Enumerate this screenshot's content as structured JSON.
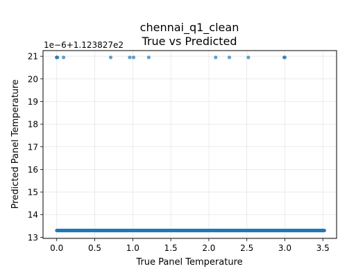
{
  "chart_data": {
    "type": "scatter",
    "title_line1": "chennai_q1_clean",
    "title_line2": "True vs Predicted",
    "xlabel": "True Panel Temperature",
    "ylabel": "Predicted Panel Temperature",
    "offset_label": "1e−6+1.123827e2",
    "xlim": [
      -0.18,
      3.68
    ],
    "ylim": [
      12.95,
      21.25
    ],
    "xticks": [
      0.0,
      0.5,
      1.0,
      1.5,
      2.0,
      2.5,
      3.0,
      3.5
    ],
    "xtick_labels": [
      "0.0",
      "0.5",
      "1.0",
      "1.5",
      "2.0",
      "2.5",
      "3.0",
      "3.5"
    ],
    "yticks": [
      13,
      14,
      15,
      16,
      17,
      18,
      19,
      20,
      21
    ],
    "ytick_labels": [
      "13",
      "14",
      "15",
      "16",
      "17",
      "18",
      "19",
      "20",
      "21"
    ],
    "grid": true,
    "marker_color": "#1f77b4",
    "marker_alpha": 0.7,
    "series": [
      {
        "x": [
          0.0,
          0.0,
          0.01,
          0.09,
          0.71,
          0.96,
          1.01,
          1.21,
          2.09,
          2.27,
          2.52,
          2.99,
          3.0
        ],
        "y": [
          20.95,
          20.95,
          20.95,
          20.95,
          20.95,
          20.95,
          20.95,
          20.95,
          20.95,
          20.95,
          20.95,
          20.95,
          20.95
        ]
      },
      {
        "x_start": 0.0,
        "x_end": 3.52,
        "y": 13.3,
        "count": 700
      }
    ]
  }
}
